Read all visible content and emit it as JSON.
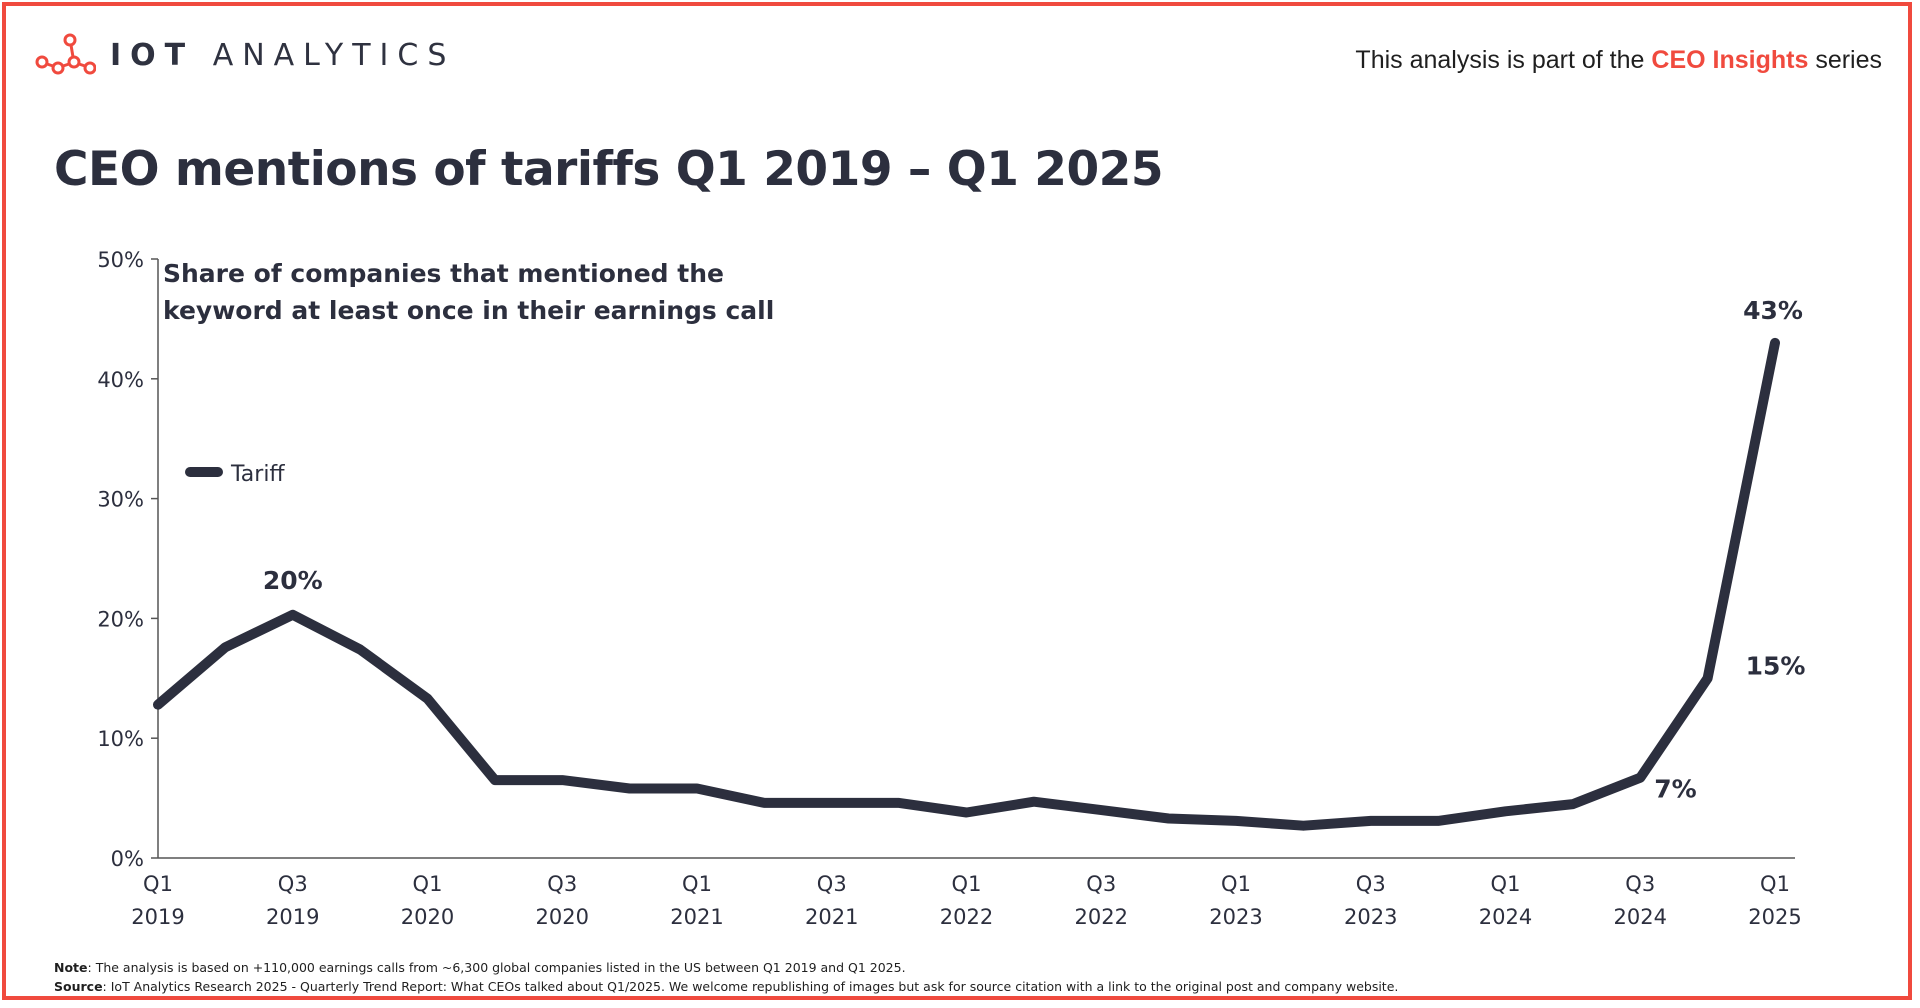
{
  "brand": {
    "name_bold": "IOT",
    "name_light": "ANALYTICS",
    "logo_icon": "network-nodes-icon",
    "accent_color": "#f04a3e"
  },
  "header": {
    "series_prefix": "This analysis is part of the",
    "series_name": "CEO Insights",
    "series_suffix": "series"
  },
  "title": "CEO mentions of tariffs Q1 2019 – Q1 2025",
  "chart_data": {
    "type": "line",
    "title": "CEO mentions of tariffs Q1 2019 – Q1 2025",
    "annotation_line1": "Share of companies that mentioned the",
    "annotation_line2": "keyword at least once in their earnings call",
    "ylabel": "",
    "xlabel": "",
    "ylim": [
      0,
      50
    ],
    "yticks": [
      "0%",
      "10%",
      "20%",
      "30%",
      "40%",
      "50%"
    ],
    "ytick_values": [
      0,
      10,
      20,
      30,
      40,
      50
    ],
    "x_tick_labels": [
      {
        "q": "Q1",
        "y": "2019"
      },
      {
        "q": "Q3",
        "y": "2019"
      },
      {
        "q": "Q1",
        "y": "2020"
      },
      {
        "q": "Q3",
        "y": "2020"
      },
      {
        "q": "Q1",
        "y": "2021"
      },
      {
        "q": "Q3",
        "y": "2021"
      },
      {
        "q": "Q1",
        "y": "2022"
      },
      {
        "q": "Q3",
        "y": "2022"
      },
      {
        "q": "Q1",
        "y": "2023"
      },
      {
        "q": "Q3",
        "y": "2023"
      },
      {
        "q": "Q1",
        "y": "2024"
      },
      {
        "q": "Q3",
        "y": "2024"
      },
      {
        "q": "Q1",
        "y": "2025"
      }
    ],
    "categories": [
      "Q1 2019",
      "Q2 2019",
      "Q3 2019",
      "Q4 2019",
      "Q1 2020",
      "Q2 2020",
      "Q3 2020",
      "Q4 2020",
      "Q1 2021",
      "Q2 2021",
      "Q3 2021",
      "Q4 2021",
      "Q1 2022",
      "Q2 2022",
      "Q3 2022",
      "Q4 2022",
      "Q1 2023",
      "Q2 2023",
      "Q3 2023",
      "Q4 2023",
      "Q1 2024",
      "Q2 2024",
      "Q3 2024",
      "Q4 2024",
      "Q1 2025"
    ],
    "series": [
      {
        "name": "Tariff",
        "color": "#2c2f3e",
        "values": [
          12.8,
          17.6,
          20.3,
          17.4,
          13.3,
          6.5,
          6.5,
          5.8,
          5.8,
          4.6,
          4.6,
          4.6,
          3.8,
          4.7,
          4.0,
          3.3,
          3.1,
          2.7,
          3.1,
          3.1,
          3.9,
          4.5,
          6.7,
          15.0,
          43.0
        ]
      }
    ],
    "data_labels": [
      {
        "index": 2,
        "text": "20%"
      },
      {
        "index": 22,
        "text": "7%"
      },
      {
        "index": 23,
        "text": "15%"
      },
      {
        "index": 24,
        "text": "43%"
      }
    ],
    "legend": {
      "position": "left",
      "entries": [
        "Tariff"
      ]
    }
  },
  "footnotes": {
    "note_label": "Note",
    "note_text": ": The analysis is based on +110,000 earnings calls from ~6,300 global companies listed in the US between Q1 2019 and Q1 2025.",
    "source_label": "Source",
    "source_text": ": IoT Analytics Research 2025 - Quarterly Trend Report: What CEOs talked about Q1/2025. We welcome republishing of images but ask for source citation with a link to the original post and company website."
  }
}
